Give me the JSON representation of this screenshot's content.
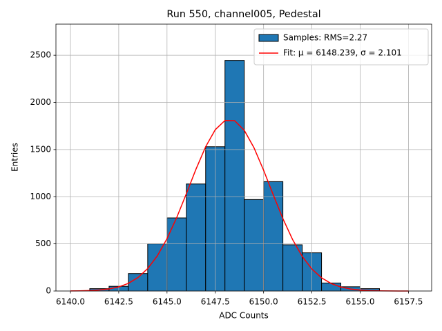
{
  "chart_data": {
    "type": "histogram",
    "title": "Run 550, channel005, Pedestal",
    "x_label": "ADC Counts",
    "y_label": "Entries",
    "bins": [
      6141,
      6142,
      6143,
      6144,
      6145,
      6146,
      6147,
      6148,
      6149,
      6150,
      6151,
      6152,
      6153,
      6154,
      6155,
      6156
    ],
    "series": [
      {
        "name": "Samples: RMS=2.27",
        "type": "histogram",
        "color": "#1f77b4",
        "values": [
          25,
          50,
          185,
          500,
          775,
          1135,
          1530,
          2445,
          970,
          1160,
          490,
          405,
          85,
          45,
          25
        ]
      },
      {
        "name": "Fit: μ = 6148.239, σ = 2.101",
        "type": "line",
        "color": "#ff0000",
        "x": [
          6140,
          6140.5,
          6141,
          6141.5,
          6142,
          6142.5,
          6143,
          6143.5,
          6144,
          6144.5,
          6145,
          6145.5,
          6146,
          6146.5,
          6147,
          6147.5,
          6148,
          6148.5,
          6149,
          6149.5,
          6150,
          6150.5,
          6151,
          6151.5,
          6152,
          6152.5,
          6153,
          6153.5,
          6154,
          6154.5,
          6155,
          6155.5,
          6156,
          6156.5,
          6157,
          6157.5
        ],
        "values": [
          0.8,
          2.1,
          4.8,
          10.6,
          22.2,
          43.6,
          81.2,
          143,
          238,
          373,
          555,
          778,
          1031,
          1292,
          1530,
          1711,
          1808,
          1806,
          1704,
          1520,
          1281,
          1020,
          767,
          546,
          367,
          233,
          140,
          79,
          42,
          21,
          10,
          4.6,
          2.0,
          0.8,
          0.3,
          0.1
        ]
      }
    ],
    "xlim": [
      6139.25,
      6158.7
    ],
    "ylim": [
      0,
      2830
    ],
    "xticks": [
      {
        "value": 6140,
        "label": "6140.0"
      },
      {
        "value": 6142.5,
        "label": "6142.5"
      },
      {
        "value": 6145,
        "label": "6145.0"
      },
      {
        "value": 6147.5,
        "label": "6147.5"
      },
      {
        "value": 6150,
        "label": "6150.0"
      },
      {
        "value": 6152.5,
        "label": "6152.5"
      },
      {
        "value": 6155,
        "label": "6155.0"
      },
      {
        "value": 6157.5,
        "label": "6157.5"
      }
    ],
    "yticks": [
      0,
      500,
      1000,
      1500,
      2000,
      2500
    ],
    "grid": true,
    "legend": "upper right"
  }
}
